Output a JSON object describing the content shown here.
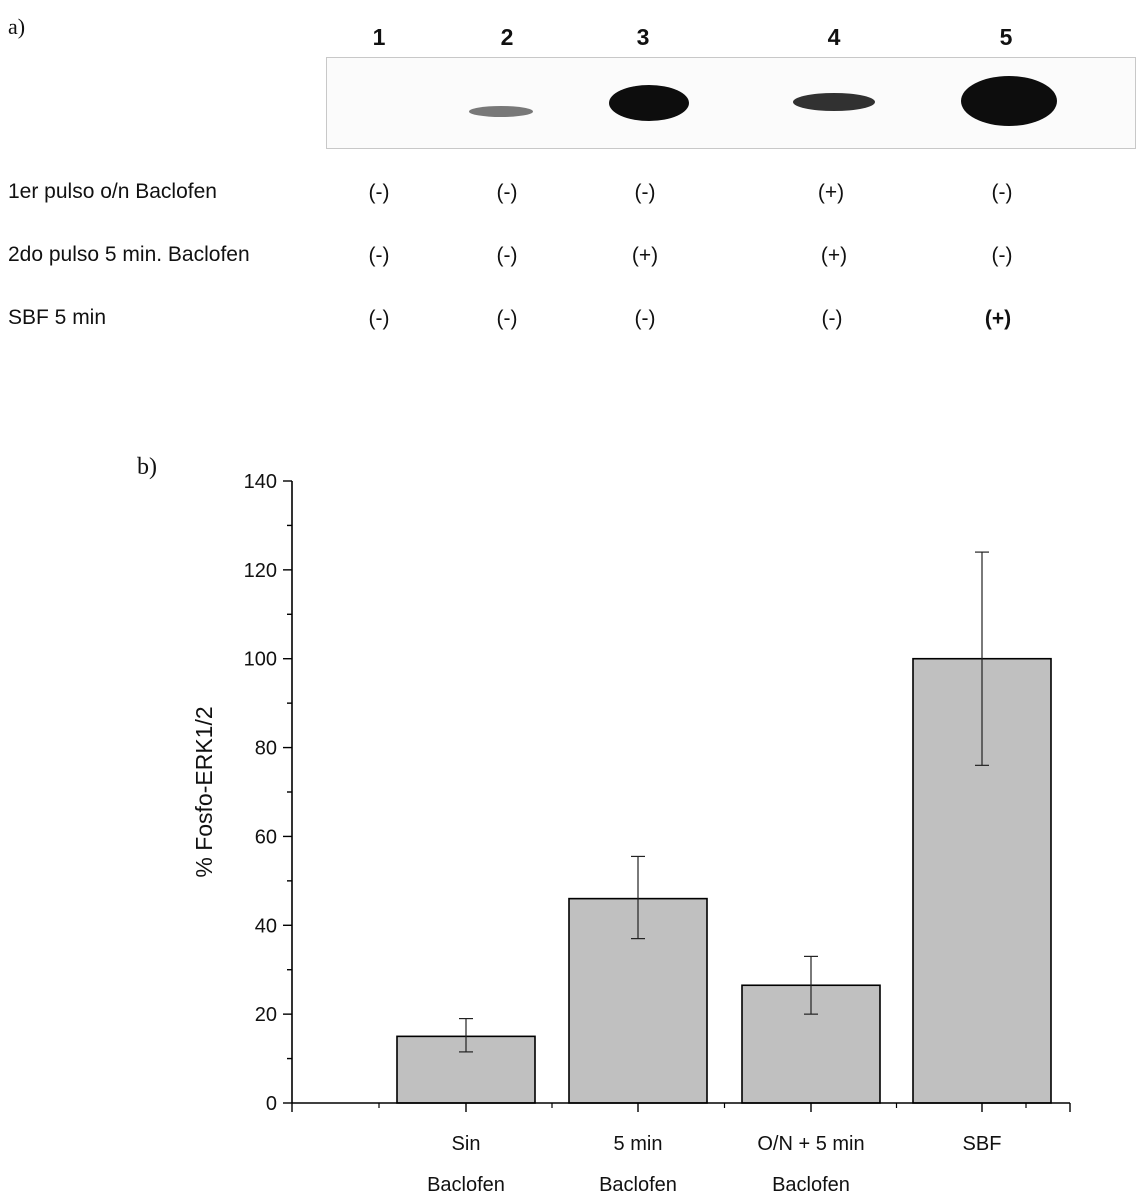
{
  "panel_a": {
    "label": "a)",
    "lanes": [
      "1",
      "2",
      "3",
      "4",
      "5"
    ],
    "rows": [
      {
        "label": "1er pulso o/n Baclofen",
        "values": [
          "(-)",
          "(-)",
          "(-)",
          "(+)",
          "(-)"
        ]
      },
      {
        "label": "2do pulso 5 min. Baclofen",
        "values": [
          "(-)",
          "(-)",
          "(+)",
          "(+)",
          "(-)"
        ]
      },
      {
        "label": "SBF 5 min",
        "values": [
          "(-)",
          "(-)",
          "(-)",
          "(-)",
          "(+)"
        ]
      }
    ],
    "band_intensity": [
      0.0,
      0.15,
      0.75,
      0.45,
      1.0
    ]
  },
  "panel_b": {
    "label": "b)"
  },
  "chart_data": {
    "type": "bar",
    "ylabel": "% Fosfo-ERK1/2",
    "xlabel": "",
    "ylim": [
      0,
      140
    ],
    "yticks": [
      0,
      20,
      40,
      60,
      80,
      100,
      120,
      140
    ],
    "categories": [
      [
        "Sin",
        "Baclofen"
      ],
      [
        "5 min",
        "Baclofen"
      ],
      [
        "O/N + 5 min",
        "Baclofen"
      ],
      [
        "SBF"
      ]
    ],
    "values": [
      15,
      46,
      26.5,
      100
    ],
    "error_low": [
      11.5,
      37,
      20,
      76
    ],
    "error_high": [
      19,
      55.5,
      33,
      124
    ],
    "bar_color": "#c0c0c0"
  }
}
